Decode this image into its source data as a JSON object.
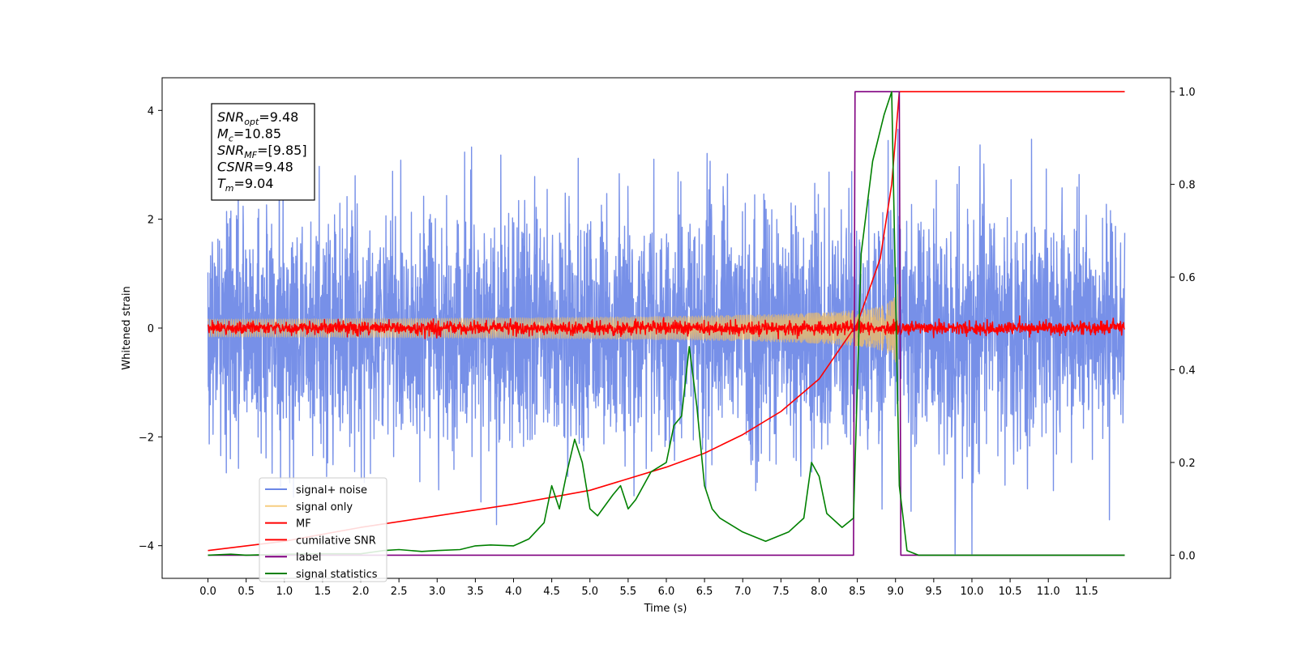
{
  "chart_data": {
    "type": "line",
    "xlabel": "Time (s)",
    "ylabel": "Whitened strain",
    "xlim": [
      -0.6,
      12.6
    ],
    "ylim": [
      -4.6,
      4.6
    ],
    "ylim_right": [
      -0.05,
      1.03
    ],
    "x_ticks": [
      "0.0",
      "0.5",
      "1.0",
      "1.5",
      "2.0",
      "2.5",
      "3.0",
      "3.5",
      "4.0",
      "4.5",
      "5.0",
      "5.5",
      "6.0",
      "6.5",
      "7.0",
      "7.5",
      "8.0",
      "8.5",
      "9.0",
      "9.5",
      "10.0",
      "10.5",
      "11.0",
      "11.5"
    ],
    "y_ticks_left": [
      "−4",
      "−2",
      "0",
      "2",
      "4"
    ],
    "y_ticks_right": [
      "0.0",
      "0.2",
      "0.4",
      "0.6",
      "0.8",
      "1.0"
    ],
    "annotation": {
      "lines": [
        {
          "base": "SNR",
          "sub": "opt",
          "rest": "=9.48"
        },
        {
          "base": "M",
          "sub": "c",
          "rest": "=10.85"
        },
        {
          "base": "SNR",
          "sub": "MF",
          "rest": "=[9.85]"
        },
        {
          "base": "CSNR",
          "sub": "",
          "rest": "=9.48"
        },
        {
          "base": "T",
          "sub": "m",
          "rest": "=9.04"
        }
      ]
    },
    "legend_position": "lower-left",
    "series": [
      {
        "name": "signal+ noise",
        "color": "#6b87e6",
        "axis": "left",
        "kind": "noise",
        "x_range": [
          0,
          12
        ],
        "amplitude_std": 1.1
      },
      {
        "name": "signal only",
        "color": "#f5c060",
        "axis": "left",
        "kind": "chirp",
        "x_range": [
          0,
          9.04
        ],
        "peak_amplitude": 0.9
      },
      {
        "name": "MF",
        "color": "#ff0000",
        "axis": "left",
        "kind": "noise",
        "x_range": [
          0,
          12
        ],
        "amplitude_std": 0.06
      },
      {
        "name": "cumilative SNR",
        "color": "#ff0000",
        "axis": "right",
        "x": [
          0.0,
          1.0,
          2.0,
          3.0,
          4.0,
          5.0,
          6.0,
          6.5,
          7.0,
          7.5,
          8.0,
          8.5,
          8.8,
          8.95,
          9.04,
          9.05,
          12.0
        ],
        "y": [
          0.01,
          0.03,
          0.06,
          0.085,
          0.11,
          0.14,
          0.19,
          0.22,
          0.26,
          0.31,
          0.38,
          0.5,
          0.64,
          0.8,
          0.98,
          1.0,
          1.0
        ]
      },
      {
        "name": "label",
        "color": "#800080",
        "axis": "right",
        "x": [
          0.0,
          8.45,
          8.47,
          9.05,
          9.07,
          12.0
        ],
        "y": [
          0.0,
          0.0,
          1.0,
          1.0,
          0.0,
          0.0
        ]
      },
      {
        "name": "signal statistics",
        "color": "#008000",
        "axis": "right",
        "x": [
          0.0,
          0.3,
          0.5,
          1.0,
          1.5,
          2.0,
          2.3,
          2.5,
          2.8,
          3.0,
          3.3,
          3.5,
          3.7,
          4.0,
          4.2,
          4.4,
          4.5,
          4.6,
          4.7,
          4.8,
          4.9,
          5.0,
          5.1,
          5.3,
          5.4,
          5.5,
          5.6,
          5.8,
          6.0,
          6.1,
          6.2,
          6.3,
          6.4,
          6.5,
          6.6,
          6.7,
          7.0,
          7.3,
          7.6,
          7.8,
          7.9,
          8.0,
          8.1,
          8.3,
          8.45,
          8.55,
          8.7,
          8.85,
          8.95,
          9.05,
          9.15,
          9.3,
          10.0,
          11.0,
          12.0
        ],
        "y": [
          0.0,
          0.002,
          0.0,
          0.002,
          0.003,
          0.003,
          0.01,
          0.012,
          0.008,
          0.01,
          0.012,
          0.02,
          0.022,
          0.02,
          0.035,
          0.07,
          0.15,
          0.1,
          0.18,
          0.25,
          0.2,
          0.1,
          0.085,
          0.13,
          0.15,
          0.1,
          0.12,
          0.18,
          0.2,
          0.28,
          0.3,
          0.45,
          0.32,
          0.15,
          0.1,
          0.08,
          0.05,
          0.03,
          0.05,
          0.08,
          0.2,
          0.17,
          0.09,
          0.06,
          0.08,
          0.65,
          0.85,
          0.95,
          1.0,
          0.15,
          0.01,
          0.0,
          0.0,
          0.0,
          0.0
        ]
      }
    ]
  }
}
